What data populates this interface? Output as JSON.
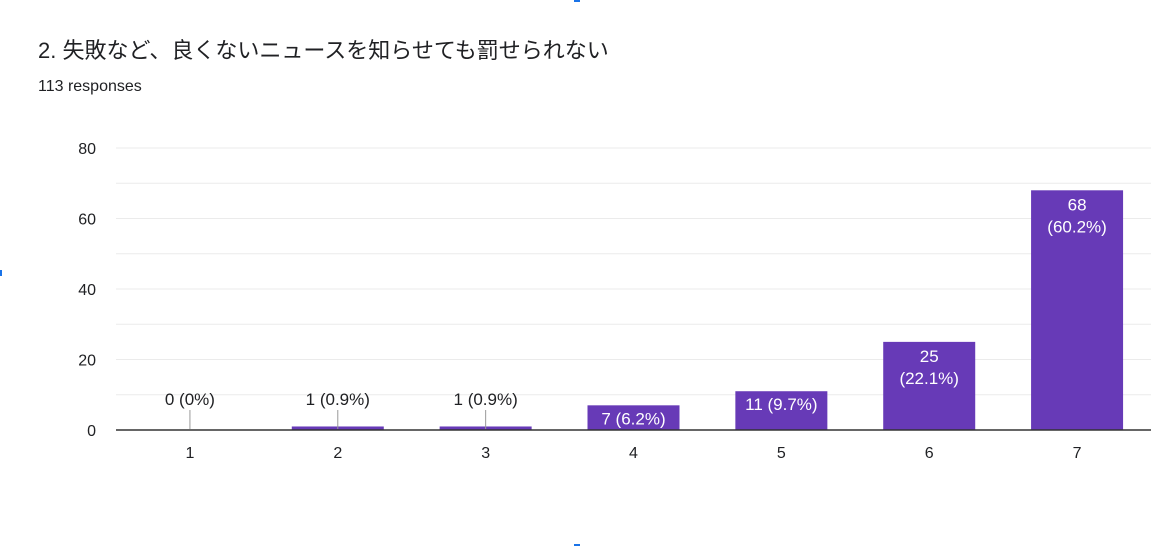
{
  "question": {
    "title": "2. 失敗など、良くないニュースを知らせても罰せられない",
    "responses": "113 responses"
  },
  "colors": {
    "bar": "#673ab7",
    "grid": "#ebebeb",
    "axis": "#333333",
    "text": "#202124",
    "leader": "#999999",
    "selection_marker": "#1a73e8"
  },
  "chart_data": {
    "type": "bar",
    "title": "",
    "xlabel": "",
    "ylabel": "",
    "categories": [
      "1",
      "2",
      "3",
      "4",
      "5",
      "6",
      "7"
    ],
    "values": [
      0,
      1,
      1,
      7,
      11,
      25,
      68
    ],
    "data_labels": [
      [
        "0 (0%)"
      ],
      [
        "1 (0.9%)"
      ],
      [
        "1 (0.9%)"
      ],
      [
        "7 (6.2%)"
      ],
      [
        "11 (9.7%)"
      ],
      [
        "25",
        "(22.1%)"
      ],
      [
        "68",
        "(60.2%)"
      ]
    ],
    "ylim": [
      0,
      80
    ],
    "yticks": [
      "0",
      "20",
      "40",
      "60",
      "80"
    ],
    "grid": true,
    "legend": "none"
  }
}
